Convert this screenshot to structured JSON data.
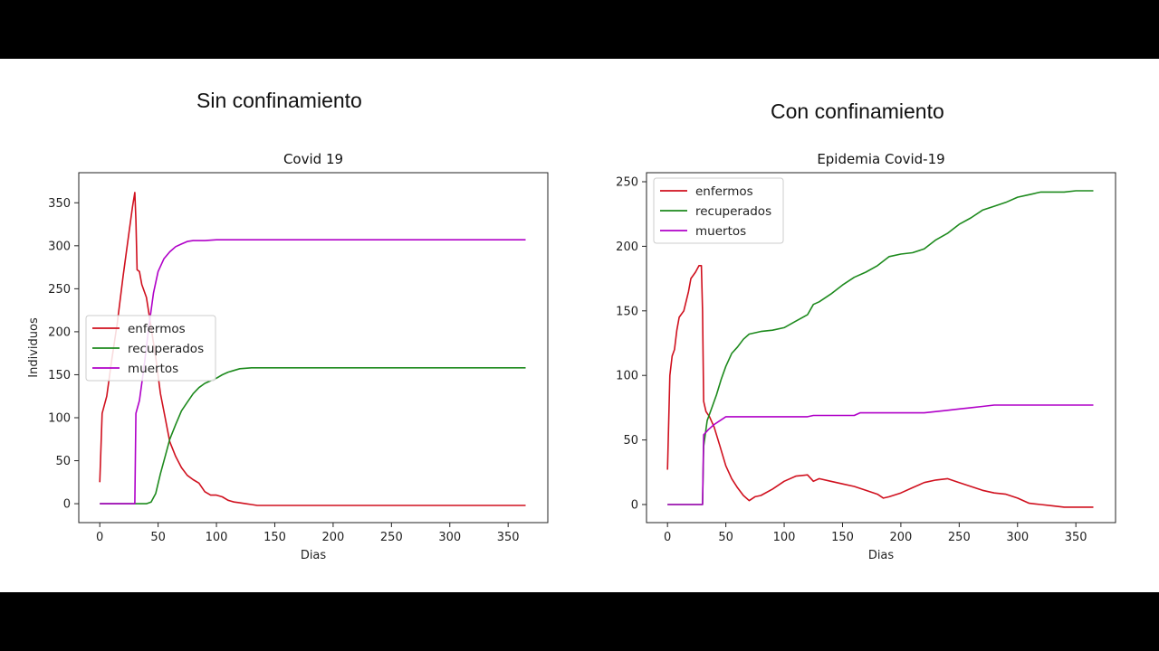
{
  "page": {
    "heading_left": "Sin confinamiento",
    "heading_right": "Con confinamiento"
  },
  "colors": {
    "enfermos": "#d0101e",
    "recuperados": "#1d8a1d",
    "muertos": "#b000c8",
    "background": "#000000"
  },
  "chart_data": [
    {
      "type": "line",
      "title": "Covid 19",
      "xlabel": "Dias",
      "ylabel": "Individuos",
      "xlim": [
        -18,
        384
      ],
      "ylim": [
        -22,
        385
      ],
      "xticks": [
        0,
        50,
        100,
        150,
        200,
        250,
        300,
        350
      ],
      "yticks": [
        0,
        50,
        100,
        150,
        200,
        250,
        300,
        350
      ],
      "legend": "center-left",
      "grid": false,
      "series": [
        {
          "name": "enfermos",
          "color": "#d0101e",
          "points": [
            [
              0,
              25
            ],
            [
              2,
              105
            ],
            [
              6,
              125
            ],
            [
              10,
              165
            ],
            [
              15,
              210
            ],
            [
              20,
              265
            ],
            [
              25,
              315
            ],
            [
              28,
              345
            ],
            [
              30,
              362
            ],
            [
              31,
              330
            ],
            [
              32,
              272
            ],
            [
              34,
              270
            ],
            [
              36,
              255
            ],
            [
              40,
              240
            ],
            [
              44,
              205
            ],
            [
              48,
              170
            ],
            [
              52,
              128
            ],
            [
              56,
              100
            ],
            [
              60,
              72
            ],
            [
              65,
              55
            ],
            [
              70,
              42
            ],
            [
              75,
              33
            ],
            [
              80,
              28
            ],
            [
              85,
              24
            ],
            [
              90,
              14
            ],
            [
              95,
              10
            ],
            [
              100,
              10
            ],
            [
              105,
              8
            ],
            [
              110,
              4
            ],
            [
              115,
              2
            ],
            [
              120,
              1
            ],
            [
              125,
              0
            ],
            [
              130,
              -1
            ],
            [
              135,
              -2
            ],
            [
              365,
              -2
            ]
          ]
        },
        {
          "name": "recuperados",
          "color": "#1d8a1d",
          "points": [
            [
              0,
              0
            ],
            [
              40,
              0
            ],
            [
              44,
              2
            ],
            [
              48,
              12
            ],
            [
              52,
              35
            ],
            [
              56,
              55
            ],
            [
              60,
              75
            ],
            [
              65,
              92
            ],
            [
              70,
              108
            ],
            [
              75,
              118
            ],
            [
              80,
              128
            ],
            [
              85,
              135
            ],
            [
              90,
              140
            ],
            [
              95,
              143
            ],
            [
              100,
              146
            ],
            [
              105,
              150
            ],
            [
              110,
              153
            ],
            [
              115,
              155
            ],
            [
              120,
              157
            ],
            [
              130,
              158
            ],
            [
              365,
              158
            ]
          ]
        },
        {
          "name": "muertos",
          "color": "#b000c8",
          "points": [
            [
              0,
              0
            ],
            [
              30,
              0
            ],
            [
              31,
              105
            ],
            [
              34,
              120
            ],
            [
              38,
              160
            ],
            [
              42,
              205
            ],
            [
              46,
              245
            ],
            [
              50,
              270
            ],
            [
              55,
              285
            ],
            [
              60,
              293
            ],
            [
              65,
              299
            ],
            [
              70,
              302
            ],
            [
              75,
              305
            ],
            [
              80,
              306
            ],
            [
              90,
              306
            ],
            [
              100,
              307
            ],
            [
              365,
              307
            ]
          ]
        }
      ]
    },
    {
      "type": "line",
      "title": "Epidemia Covid-19",
      "xlabel": "Dias",
      "ylabel": "",
      "xlim": [
        -18,
        384
      ],
      "ylim": [
        -14,
        257
      ],
      "xticks": [
        0,
        50,
        100,
        150,
        200,
        250,
        300,
        350
      ],
      "yticks": [
        0,
        50,
        100,
        150,
        200,
        250
      ],
      "legend": "upper-left",
      "grid": false,
      "series": [
        {
          "name": "enfermos",
          "color": "#d0101e",
          "points": [
            [
              0,
              27
            ],
            [
              2,
              100
            ],
            [
              4,
              115
            ],
            [
              6,
              120
            ],
            [
              8,
              135
            ],
            [
              10,
              145
            ],
            [
              14,
              150
            ],
            [
              18,
              165
            ],
            [
              20,
              175
            ],
            [
              24,
              180
            ],
            [
              27,
              185
            ],
            [
              29,
              185
            ],
            [
              30,
              150
            ],
            [
              31,
              80
            ],
            [
              33,
              72
            ],
            [
              36,
              68
            ],
            [
              40,
              60
            ],
            [
              45,
              45
            ],
            [
              50,
              30
            ],
            [
              55,
              20
            ],
            [
              60,
              13
            ],
            [
              65,
              7
            ],
            [
              70,
              3
            ],
            [
              75,
              6
            ],
            [
              80,
              7
            ],
            [
              90,
              12
            ],
            [
              100,
              18
            ],
            [
              110,
              22
            ],
            [
              120,
              23
            ],
            [
              125,
              18
            ],
            [
              130,
              20
            ],
            [
              140,
              18
            ],
            [
              150,
              16
            ],
            [
              160,
              14
            ],
            [
              170,
              11
            ],
            [
              180,
              8
            ],
            [
              185,
              5
            ],
            [
              190,
              6
            ],
            [
              200,
              9
            ],
            [
              210,
              13
            ],
            [
              220,
              17
            ],
            [
              230,
              19
            ],
            [
              240,
              20
            ],
            [
              250,
              17
            ],
            [
              260,
              14
            ],
            [
              270,
              11
            ],
            [
              280,
              9
            ],
            [
              290,
              8
            ],
            [
              300,
              5
            ],
            [
              310,
              1
            ],
            [
              320,
              0
            ],
            [
              330,
              -1
            ],
            [
              340,
              -2
            ],
            [
              365,
              -2
            ]
          ]
        },
        {
          "name": "recuperados",
          "color": "#1d8a1d",
          "points": [
            [
              0,
              0
            ],
            [
              30,
              0
            ],
            [
              31,
              45
            ],
            [
              34,
              65
            ],
            [
              38,
              75
            ],
            [
              42,
              85
            ],
            [
              46,
              97
            ],
            [
              50,
              107
            ],
            [
              55,
              117
            ],
            [
              60,
              122
            ],
            [
              65,
              128
            ],
            [
              70,
              132
            ],
            [
              80,
              134
            ],
            [
              90,
              135
            ],
            [
              100,
              137
            ],
            [
              110,
              142
            ],
            [
              120,
              147
            ],
            [
              125,
              155
            ],
            [
              130,
              157
            ],
            [
              140,
              163
            ],
            [
              150,
              170
            ],
            [
              160,
              176
            ],
            [
              170,
              180
            ],
            [
              180,
              185
            ],
            [
              190,
              192
            ],
            [
              200,
              194
            ],
            [
              210,
              195
            ],
            [
              220,
              198
            ],
            [
              230,
              205
            ],
            [
              240,
              210
            ],
            [
              250,
              217
            ],
            [
              260,
              222
            ],
            [
              270,
              228
            ],
            [
              280,
              231
            ],
            [
              290,
              234
            ],
            [
              300,
              238
            ],
            [
              310,
              240
            ],
            [
              320,
              242
            ],
            [
              340,
              242
            ],
            [
              350,
              243
            ],
            [
              365,
              243
            ]
          ]
        },
        {
          "name": "muertos",
          "color": "#b000c8",
          "points": [
            [
              0,
              0
            ],
            [
              30,
              0
            ],
            [
              31,
              54
            ],
            [
              35,
              58
            ],
            [
              40,
              62
            ],
            [
              45,
              65
            ],
            [
              50,
              68
            ],
            [
              80,
              68
            ],
            [
              120,
              68
            ],
            [
              125,
              69
            ],
            [
              160,
              69
            ],
            [
              165,
              71
            ],
            [
              220,
              71
            ],
            [
              230,
              72
            ],
            [
              240,
              73
            ],
            [
              250,
              74
            ],
            [
              260,
              75
            ],
            [
              270,
              76
            ],
            [
              280,
              77
            ],
            [
              300,
              77
            ],
            [
              365,
              77
            ]
          ]
        }
      ]
    }
  ]
}
